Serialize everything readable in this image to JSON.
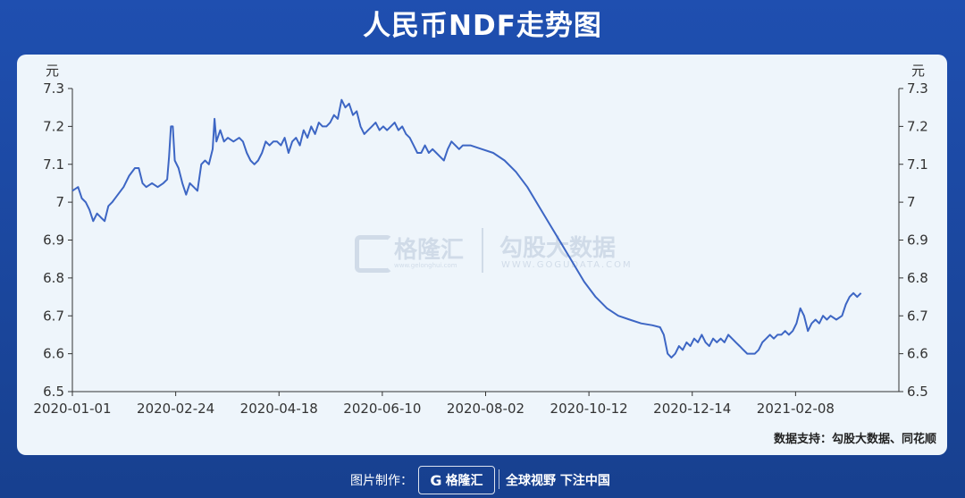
{
  "title": "人民币NDF走势图",
  "source": "数据支持：勾股大数据、同花顺",
  "footer": {
    "made_by": "图片制作：",
    "logo_text": "格隆汇",
    "slogan": "全球视野 下注中国"
  },
  "watermark": {
    "brand1": "格隆汇",
    "url1": "www.gelonghui.com",
    "brand2": "勾股大数据",
    "url2": "WWW.GOGUDATA.COM"
  },
  "colors": {
    "line": "#3d66c4",
    "background": "#1f4fb0",
    "panel": "#eef5fb"
  },
  "chart_data": {
    "type": "line",
    "title": "人民币NDF走势图",
    "unit_left": "元",
    "unit_right": "元",
    "ylim": [
      6.5,
      7.3
    ],
    "yticks": [
      "6.5",
      "6.6",
      "6.7",
      "6.8",
      "6.9",
      "7",
      "7.1",
      "7.2",
      "7.3"
    ],
    "xticks": [
      "2020-01-01",
      "2020-02-24",
      "2020-04-18",
      "2020-06-10",
      "2020-08-02",
      "2020-10-12",
      "2020-12-14",
      "2021-02-08"
    ],
    "x_range_days": [
      0,
      436
    ],
    "grid": false,
    "series": [
      {
        "values": [
          [
            0,
            7.03
          ],
          [
            3,
            7.04
          ],
          [
            5,
            7.01
          ],
          [
            7,
            7.0
          ],
          [
            9,
            6.98
          ],
          [
            11,
            6.95
          ],
          [
            13,
            6.97
          ],
          [
            15,
            6.96
          ],
          [
            17,
            6.95
          ],
          [
            19,
            6.99
          ],
          [
            21,
            7.0
          ],
          [
            24,
            7.02
          ],
          [
            27,
            7.04
          ],
          [
            30,
            7.07
          ],
          [
            33,
            7.09
          ],
          [
            35,
            7.09
          ],
          [
            37,
            7.05
          ],
          [
            39,
            7.04
          ],
          [
            42,
            7.05
          ],
          [
            45,
            7.04
          ],
          [
            48,
            7.05
          ],
          [
            50,
            7.06
          ],
          [
            51,
            7.12
          ],
          [
            52,
            7.2
          ],
          [
            53,
            7.2
          ],
          [
            54,
            7.11
          ],
          [
            56,
            7.09
          ],
          [
            58,
            7.05
          ],
          [
            60,
            7.02
          ],
          [
            62,
            7.05
          ],
          [
            64,
            7.04
          ],
          [
            66,
            7.03
          ],
          [
            68,
            7.1
          ],
          [
            70,
            7.11
          ],
          [
            72,
            7.1
          ],
          [
            74,
            7.14
          ],
          [
            75,
            7.22
          ],
          [
            76,
            7.16
          ],
          [
            78,
            7.19
          ],
          [
            80,
            7.16
          ],
          [
            82,
            7.17
          ],
          [
            85,
            7.16
          ],
          [
            88,
            7.17
          ],
          [
            90,
            7.16
          ],
          [
            92,
            7.13
          ],
          [
            94,
            7.11
          ],
          [
            96,
            7.1
          ],
          [
            98,
            7.11
          ],
          [
            100,
            7.13
          ],
          [
            102,
            7.16
          ],
          [
            104,
            7.15
          ],
          [
            106,
            7.16
          ],
          [
            108,
            7.16
          ],
          [
            110,
            7.15
          ],
          [
            112,
            7.17
          ],
          [
            114,
            7.13
          ],
          [
            116,
            7.16
          ],
          [
            118,
            7.17
          ],
          [
            120,
            7.15
          ],
          [
            122,
            7.19
          ],
          [
            124,
            7.17
          ],
          [
            126,
            7.2
          ],
          [
            128,
            7.18
          ],
          [
            130,
            7.21
          ],
          [
            132,
            7.2
          ],
          [
            134,
            7.2
          ],
          [
            136,
            7.21
          ],
          [
            138,
            7.23
          ],
          [
            140,
            7.22
          ],
          [
            142,
            7.27
          ],
          [
            144,
            7.25
          ],
          [
            146,
            7.26
          ],
          [
            148,
            7.23
          ],
          [
            150,
            7.24
          ],
          [
            152,
            7.2
          ],
          [
            154,
            7.18
          ],
          [
            156,
            7.19
          ],
          [
            158,
            7.2
          ],
          [
            160,
            7.21
          ],
          [
            162,
            7.19
          ],
          [
            164,
            7.2
          ],
          [
            166,
            7.19
          ],
          [
            168,
            7.2
          ],
          [
            170,
            7.21
          ],
          [
            172,
            7.19
          ],
          [
            174,
            7.2
          ],
          [
            176,
            7.18
          ],
          [
            178,
            7.17
          ],
          [
            180,
            7.15
          ],
          [
            182,
            7.13
          ],
          [
            184,
            7.13
          ],
          [
            186,
            7.15
          ],
          [
            188,
            7.13
          ],
          [
            190,
            7.14
          ],
          [
            192,
            7.13
          ],
          [
            194,
            7.12
          ],
          [
            196,
            7.11
          ],
          [
            198,
            7.14
          ],
          [
            200,
            7.16
          ],
          [
            202,
            7.15
          ],
          [
            204,
            7.14
          ],
          [
            206,
            7.15
          ],
          [
            210,
            7.15
          ],
          [
            216,
            7.14
          ],
          [
            222,
            7.13
          ],
          [
            228,
            7.11
          ],
          [
            234,
            7.08
          ],
          [
            240,
            7.04
          ],
          [
            246,
            6.99
          ],
          [
            252,
            6.94
          ],
          [
            258,
            6.89
          ],
          [
            264,
            6.84
          ],
          [
            270,
            6.79
          ],
          [
            276,
            6.75
          ],
          [
            282,
            6.72
          ],
          [
            288,
            6.7
          ],
          [
            294,
            6.69
          ],
          [
            300,
            6.68
          ],
          [
            306,
            6.675
          ],
          [
            310,
            6.67
          ],
          [
            312,
            6.65
          ],
          [
            314,
            6.6
          ],
          [
            316,
            6.59
          ],
          [
            318,
            6.6
          ],
          [
            320,
            6.62
          ],
          [
            322,
            6.61
          ],
          [
            324,
            6.63
          ],
          [
            326,
            6.62
          ],
          [
            328,
            6.64
          ],
          [
            330,
            6.63
          ],
          [
            332,
            6.65
          ],
          [
            334,
            6.63
          ],
          [
            336,
            6.62
          ],
          [
            338,
            6.64
          ],
          [
            340,
            6.63
          ],
          [
            342,
            6.64
          ],
          [
            344,
            6.63
          ],
          [
            346,
            6.65
          ],
          [
            348,
            6.64
          ],
          [
            350,
            6.63
          ],
          [
            352,
            6.62
          ],
          [
            354,
            6.61
          ],
          [
            356,
            6.6
          ],
          [
            358,
            6.6
          ],
          [
            360,
            6.6
          ],
          [
            362,
            6.61
          ],
          [
            364,
            6.63
          ],
          [
            366,
            6.64
          ],
          [
            368,
            6.65
          ],
          [
            370,
            6.64
          ],
          [
            372,
            6.65
          ],
          [
            374,
            6.65
          ],
          [
            376,
            6.66
          ],
          [
            378,
            6.65
          ],
          [
            380,
            6.66
          ],
          [
            382,
            6.68
          ],
          [
            384,
            6.72
          ],
          [
            386,
            6.7
          ],
          [
            388,
            6.66
          ],
          [
            390,
            6.68
          ],
          [
            392,
            6.69
          ],
          [
            394,
            6.68
          ],
          [
            396,
            6.7
          ],
          [
            398,
            6.69
          ],
          [
            400,
            6.7
          ],
          [
            403,
            6.69
          ],
          [
            406,
            6.7
          ],
          [
            408,
            6.73
          ],
          [
            410,
            6.75
          ],
          [
            412,
            6.76
          ],
          [
            414,
            6.75
          ],
          [
            416,
            6.76
          ]
        ]
      }
    ]
  }
}
